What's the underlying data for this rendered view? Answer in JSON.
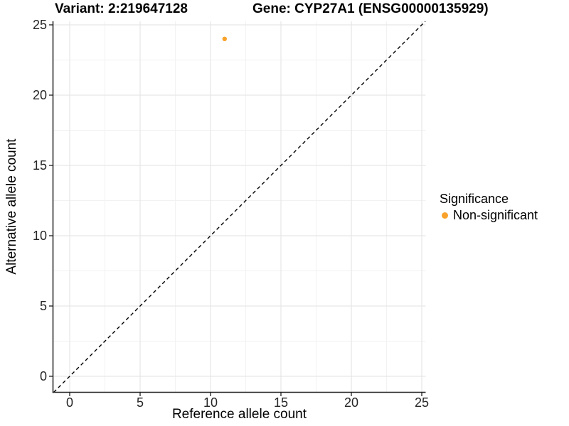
{
  "figure": {
    "title_variant": "Variant: 2:219647128",
    "title_gene": "Gene: CYP27A1 (ENSG00000135929)"
  },
  "chart_data": {
    "type": "scatter",
    "title": "Variant: 2:219647128    Gene: CYP27A1 (ENSG00000135929)",
    "xlabel": "Reference allele count",
    "ylabel": "Alternative allele count",
    "x_ticks": [
      0,
      5,
      10,
      15,
      20,
      25
    ],
    "y_ticks": [
      0,
      5,
      10,
      15,
      20,
      25
    ],
    "xlim": [
      -1.2,
      25.3
    ],
    "ylim": [
      -1.1,
      25.3
    ],
    "grid": "major-and-minor",
    "points": [
      {
        "x": 11,
        "y": 24,
        "series": "Non-significant"
      }
    ],
    "reference_line": {
      "slope": 1,
      "intercept": 0,
      "style": "dashed",
      "color": "#000000"
    },
    "legend": {
      "title": "Significance",
      "position": "right",
      "items": [
        {
          "label": "Non-significant",
          "color": "#F9A22B"
        }
      ]
    },
    "colors": {
      "point": "#F9A22B",
      "grid_major": "#E7E7E7",
      "grid_minor": "#F2F2F2",
      "axis": "#1F1F1F",
      "tick_label": "#262626"
    }
  }
}
